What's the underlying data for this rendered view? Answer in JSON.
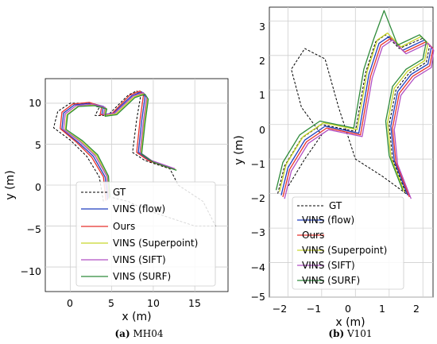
{
  "chart_data": [
    {
      "type": "line",
      "caption_letter": "(a)",
      "caption_text": "MH04",
      "xlabel": "x (m)",
      "ylabel": "y (m)",
      "xlim": [
        -3,
        19
      ],
      "ylim": [
        -13,
        13
      ],
      "xticks": [
        "0",
        "5",
        "10",
        "15"
      ],
      "yticks": [
        "10",
        "5",
        "0",
        "−5",
        "−10"
      ],
      "grid": true,
      "legend_position": "lower-right",
      "series": [
        {
          "name": "GT",
          "color": "#000000",
          "dash": true,
          "points": [
            [
              4,
              -2
            ],
            [
              3.5,
              1
            ],
            [
              2,
              3.5
            ],
            [
              0,
              5.5
            ],
            [
              -2,
              7
            ],
            [
              -1.5,
              9
            ],
            [
              0,
              10
            ],
            [
              2,
              10
            ],
            [
              3.5,
              9.5
            ],
            [
              3,
              8.5
            ],
            [
              4.5,
              8.5
            ],
            [
              7,
              11
            ],
            [
              8,
              11.5
            ],
            [
              8.5,
              11
            ],
            [
              8,
              8
            ],
            [
              7.5,
              4
            ],
            [
              9,
              3
            ],
            [
              12,
              2
            ],
            [
              13,
              0
            ],
            [
              16,
              -2
            ],
            [
              17.5,
              -5
            ],
            [
              15,
              -5
            ],
            [
              12,
              -4
            ],
            [
              9,
              -3
            ],
            [
              7,
              -2
            ],
            [
              5,
              -1.5
            ]
          ]
        },
        {
          "name": "VINS (flow)",
          "color": "#1f3fbf",
          "points": [
            [
              4.5,
              -1.8
            ],
            [
              4.2,
              1
            ],
            [
              2.8,
              3.5
            ],
            [
              1,
              5.2
            ],
            [
              -1,
              6.8
            ],
            [
              -0.8,
              8.8
            ],
            [
              0.5,
              9.8
            ],
            [
              2.5,
              10
            ],
            [
              4,
              9.6
            ],
            [
              3.8,
              8.6
            ],
            [
              5.2,
              8.8
            ],
            [
              7.4,
              10.9
            ],
            [
              8.6,
              11.4
            ],
            [
              9,
              10.8
            ],
            [
              8.6,
              7.8
            ],
            [
              8.2,
              4
            ],
            [
              9.6,
              3
            ],
            [
              12.4,
              2
            ]
          ]
        },
        {
          "name": "Ours",
          "color": "#e8322c",
          "points": [
            [
              4.3,
              -1.9
            ],
            [
              4,
              1
            ],
            [
              2.6,
              3.4
            ],
            [
              0.8,
              5.2
            ],
            [
              -1.2,
              6.9
            ],
            [
              -1,
              8.9
            ],
            [
              0.3,
              9.9
            ],
            [
              2.3,
              10.1
            ],
            [
              3.8,
              9.6
            ],
            [
              3.6,
              8.6
            ],
            [
              5,
              8.7
            ],
            [
              7.2,
              11
            ],
            [
              8.4,
              11.5
            ],
            [
              8.8,
              10.9
            ],
            [
              8.4,
              7.9
            ],
            [
              8,
              4
            ],
            [
              9.4,
              3
            ],
            [
              12.2,
              2
            ]
          ]
        },
        {
          "name": "VINS (Superpoint)",
          "color": "#c8d62a",
          "points": [
            [
              4.7,
              -1.7
            ],
            [
              4.5,
              1
            ],
            [
              3.2,
              3.6
            ],
            [
              1.4,
              5.3
            ],
            [
              -0.6,
              6.7
            ],
            [
              -0.4,
              8.6
            ],
            [
              0.9,
              9.6
            ],
            [
              2.9,
              9.8
            ],
            [
              4.3,
              9.4
            ],
            [
              4.1,
              8.5
            ],
            [
              5.5,
              8.7
            ],
            [
              7.7,
              10.8
            ],
            [
              8.9,
              11.2
            ],
            [
              9.3,
              10.6
            ],
            [
              8.9,
              7.6
            ],
            [
              8.5,
              3.9
            ],
            [
              9.9,
              2.9
            ],
            [
              12.7,
              1.9
            ]
          ]
        },
        {
          "name": "VINS (SIFT)",
          "color": "#b04fc4",
          "points": [
            [
              4.6,
              -1.6
            ],
            [
              4.4,
              1.1
            ],
            [
              3,
              3.6
            ],
            [
              1.2,
              5.3
            ],
            [
              -0.8,
              6.8
            ],
            [
              -0.6,
              8.7
            ],
            [
              0.7,
              9.7
            ],
            [
              2.7,
              9.9
            ],
            [
              4.2,
              9.5
            ],
            [
              4,
              8.6
            ],
            [
              5.4,
              8.8
            ],
            [
              7.6,
              10.9
            ],
            [
              8.8,
              11.3
            ],
            [
              9.2,
              10.7
            ],
            [
              8.8,
              7.7
            ],
            [
              8.4,
              4
            ],
            [
              9.8,
              3
            ],
            [
              12.6,
              2
            ]
          ]
        },
        {
          "name": "VINS (SURF)",
          "color": "#2e8b3a",
          "points": [
            [
              4.8,
              -1.5
            ],
            [
              4.6,
              1.1
            ],
            [
              3.3,
              3.7
            ],
            [
              1.5,
              5.4
            ],
            [
              -0.5,
              6.8
            ],
            [
              -0.3,
              8.6
            ],
            [
              1,
              9.6
            ],
            [
              3,
              9.7
            ],
            [
              4.4,
              9.3
            ],
            [
              4.2,
              8.4
            ],
            [
              5.6,
              8.6
            ],
            [
              7.8,
              10.7
            ],
            [
              9,
              11.1
            ],
            [
              9.4,
              10.5
            ],
            [
              9,
              7.5
            ],
            [
              8.6,
              3.8
            ],
            [
              10,
              2.8
            ],
            [
              12.8,
              1.8
            ]
          ]
        }
      ]
    },
    {
      "type": "line",
      "caption_letter": "(b)",
      "caption_text": "V101",
      "xlabel": "x (m)",
      "ylabel": "y (m)",
      "xlim": [
        -2.55,
        2.3
      ],
      "ylim": [
        -5,
        3.4
      ],
      "xticks": [
        "−2",
        "−1",
        "0",
        "1",
        "2"
      ],
      "yticks": [
        "3",
        "2",
        "1",
        "0",
        "−1",
        "−2",
        "−3",
        "−4",
        "−5"
      ],
      "grid": true,
      "legend_position": "lower-left",
      "series": [
        {
          "name": "GT",
          "color": "#000000",
          "dash": true,
          "points": [
            [
              -2.3,
              -2
            ],
            [
              -2.1,
              -1.2
            ],
            [
              -1.6,
              -0.4
            ],
            [
              -1,
              0
            ],
            [
              0,
              -0.2
            ],
            [
              0.3,
              1.5
            ],
            [
              0.6,
              2.4
            ],
            [
              0.9,
              2.6
            ],
            [
              1.3,
              2.2
            ],
            [
              2,
              2.5
            ],
            [
              2.2,
              2.3
            ],
            [
              2.1,
              1.8
            ],
            [
              1.6,
              1.5
            ],
            [
              1.2,
              1
            ],
            [
              1,
              0
            ],
            [
              1.1,
              -1
            ],
            [
              1.5,
              -2
            ],
            [
              0.8,
              -1.5
            ],
            [
              0,
              -1
            ],
            [
              -0.5,
              0.5
            ],
            [
              -0.9,
              1.9
            ],
            [
              -1.5,
              2.2
            ],
            [
              -1.9,
              1.6
            ],
            [
              -1.6,
              0.5
            ],
            [
              -1,
              -0.3
            ],
            [
              -1.5,
              -1
            ],
            [
              -2,
              -1.8
            ]
          ]
        },
        {
          "name": "VINS (flow)",
          "color": "#1f3fbf",
          "points": [
            [
              -2.2,
              -2.05
            ],
            [
              -2,
              -1.25
            ],
            [
              -1.5,
              -0.45
            ],
            [
              -0.9,
              -0.05
            ],
            [
              0.1,
              -0.25
            ],
            [
              0.4,
              1.45
            ],
            [
              0.7,
              2.35
            ],
            [
              1,
              2.55
            ],
            [
              1.4,
              2.15
            ],
            [
              2.05,
              2.45
            ],
            [
              2.25,
              2.25
            ],
            [
              2.15,
              1.75
            ],
            [
              1.65,
              1.45
            ],
            [
              1.25,
              0.95
            ],
            [
              1.05,
              -0.05
            ],
            [
              1.15,
              -1.05
            ],
            [
              1.55,
              -2.05
            ]
          ]
        },
        {
          "name": "Ours",
          "color": "#e8322c",
          "points": [
            [
              -2.15,
              -2.1
            ],
            [
              -1.95,
              -1.3
            ],
            [
              -1.45,
              -0.5
            ],
            [
              -0.85,
              -0.1
            ],
            [
              0.15,
              -0.3
            ],
            [
              0.45,
              1.4
            ],
            [
              0.75,
              2.3
            ],
            [
              1.05,
              2.5
            ],
            [
              1.45,
              2.1
            ],
            [
              2.1,
              2.4
            ],
            [
              2.3,
              2.2
            ],
            [
              2.2,
              1.7
            ],
            [
              1.7,
              1.4
            ],
            [
              1.3,
              0.9
            ],
            [
              1.1,
              -0.1
            ],
            [
              1.2,
              -1.1
            ],
            [
              1.6,
              -2.1
            ]
          ]
        },
        {
          "name": "VINS (Superpoint)",
          "color": "#c8d62a",
          "points": [
            [
              -2.25,
              -1.95
            ],
            [
              -2.05,
              -1.15
            ],
            [
              -1.55,
              -0.35
            ],
            [
              -0.95,
              0.05
            ],
            [
              0.05,
              -0.15
            ],
            [
              0.35,
              1.55
            ],
            [
              0.65,
              2.45
            ],
            [
              0.95,
              2.65
            ],
            [
              1.35,
              2.25
            ],
            [
              1.95,
              2.55
            ],
            [
              2.15,
              2.35
            ],
            [
              2.05,
              1.85
            ],
            [
              1.55,
              1.55
            ],
            [
              1.15,
              1.05
            ],
            [
              0.95,
              0.05
            ],
            [
              1.05,
              -0.95
            ],
            [
              1.45,
              -1.95
            ]
          ]
        },
        {
          "name": "VINS (SIFT)",
          "color": "#b04fc4",
          "points": [
            [
              -2.1,
              -2.15
            ],
            [
              -1.9,
              -1.35
            ],
            [
              -1.4,
              -0.55
            ],
            [
              -0.8,
              -0.15
            ],
            [
              0.2,
              -0.35
            ],
            [
              0.5,
              1.35
            ],
            [
              0.8,
              2.25
            ],
            [
              1.1,
              2.45
            ],
            [
              1.5,
              2.05
            ],
            [
              2.15,
              2.35
            ],
            [
              2.32,
              2.15
            ],
            [
              2.25,
              1.65
            ],
            [
              1.75,
              1.35
            ],
            [
              1.35,
              0.85
            ],
            [
              1.15,
              -0.15
            ],
            [
              1.25,
              -1.15
            ],
            [
              1.65,
              -2.15
            ]
          ]
        },
        {
          "name": "VINS (SURF)",
          "color": "#2e8b3a",
          "points": [
            [
              -2.35,
              -1.9
            ],
            [
              -2.15,
              -1.1
            ],
            [
              -1.65,
              -0.3
            ],
            [
              -1.05,
              0.1
            ],
            [
              -0.05,
              -0.1
            ],
            [
              0.25,
              1.6
            ],
            [
              0.55,
              2.5
            ],
            [
              0.85,
              3.3
            ],
            [
              1.25,
              2.3
            ],
            [
              1.9,
              2.6
            ],
            [
              2.1,
              2.4
            ],
            [
              2,
              1.9
            ],
            [
              1.5,
              1.6
            ],
            [
              1.1,
              1.1
            ],
            [
              0.9,
              0.1
            ],
            [
              1,
              -0.9
            ],
            [
              1.4,
              -1.9
            ]
          ]
        }
      ]
    }
  ]
}
